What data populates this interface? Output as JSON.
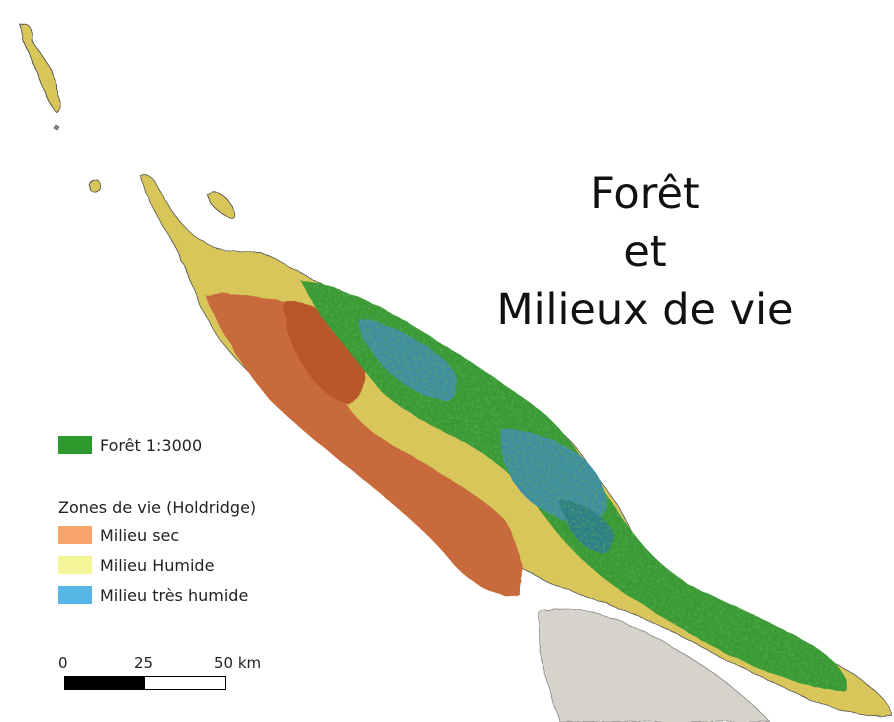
{
  "title": {
    "line1": "Forêt",
    "line2": "et",
    "line3": "Milieux de vie"
  },
  "legend": {
    "forest": {
      "label": "Forêt 1:3000",
      "color": "#2e9a2e"
    },
    "zones_heading": "Zones de vie (Holdridge)",
    "zones": [
      {
        "label": "Milieu sec",
        "color": "#f6a46a"
      },
      {
        "label": "Milieu Humide",
        "color": "#f5f59a"
      },
      {
        "label": "Milieu très humide",
        "color": "#56b6e6"
      }
    ]
  },
  "scale_bar": {
    "labels": [
      "0",
      "25",
      "50 km"
    ]
  },
  "colors": {
    "dry_terrain": "#c86a3a",
    "humid_terrain": "#d8c65a",
    "very_humid_terrain": "#3f8fa0",
    "forest": "#3a9a34",
    "other_land": "#d6d2cc"
  }
}
